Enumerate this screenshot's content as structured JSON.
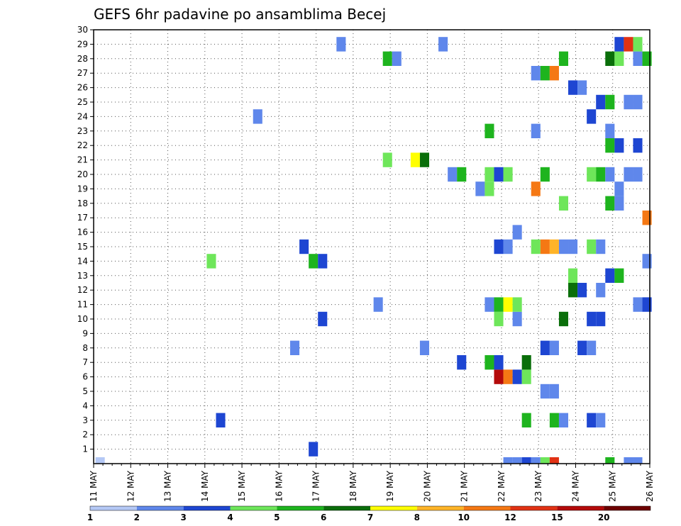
{
  "chart_data": {
    "type": "heatmap",
    "title": "GEFS 6hr padavine po ansamblima Becej",
    "x_tick_labels": [
      "11 MAY",
      "12 MAY",
      "13 MAY",
      "14 MAY",
      "15 MAY",
      "16 MAY",
      "17 MAY",
      "18 MAY",
      "19 MAY",
      "20 MAY",
      "21 MAY",
      "22 MAY",
      "23 MAY",
      "24 MAY",
      "25 MAY",
      "26 MAY"
    ],
    "x_range_days": [
      11,
      26
    ],
    "y_tick_labels": [
      "1",
      "2",
      "3",
      "4",
      "5",
      "6",
      "7",
      "8",
      "9",
      "10",
      "11",
      "12",
      "13",
      "14",
      "15",
      "16",
      "17",
      "18",
      "19",
      "20",
      "21",
      "22",
      "23",
      "24",
      "25",
      "26",
      "27",
      "28",
      "29",
      "30"
    ],
    "y_range": [
      0,
      30
    ],
    "grid": true,
    "legend": {
      "placement": "bottom",
      "labels": [
        "1",
        "2",
        "3",
        "4",
        "5",
        "6",
        "7",
        "8",
        "10",
        "12",
        "15",
        "20"
      ],
      "colors": [
        "#b4c8f5",
        "#5f87eb",
        "#1e46d2",
        "#6ee65a",
        "#1eb41e",
        "#0a6e0a",
        "#ffff00",
        "#ffb428",
        "#f57814",
        "#e13214",
        "#b40a0a",
        "#6e0000"
      ]
    },
    "cells": [
      {
        "x": 11.05,
        "y": 0,
        "level": 0
      },
      {
        "x": 22.05,
        "y": 0,
        "level": 1
      },
      {
        "x": 22.3,
        "y": 0,
        "level": 1
      },
      {
        "x": 22.55,
        "y": 0,
        "level": 2
      },
      {
        "x": 22.8,
        "y": 0,
        "level": 1
      },
      {
        "x": 23.05,
        "y": 0,
        "level": 3
      },
      {
        "x": 23.3,
        "y": 0,
        "level": 9
      },
      {
        "x": 24.8,
        "y": 0,
        "level": 4
      },
      {
        "x": 25.3,
        "y": 0,
        "level": 1
      },
      {
        "x": 25.55,
        "y": 0,
        "level": 1
      },
      {
        "x": 16.8,
        "y": 1,
        "level": 2
      },
      {
        "x": 14.3,
        "y": 3,
        "level": 2
      },
      {
        "x": 22.55,
        "y": 3,
        "level": 4
      },
      {
        "x": 23.3,
        "y": 3,
        "level": 4
      },
      {
        "x": 23.55,
        "y": 3,
        "level": 1
      },
      {
        "x": 24.3,
        "y": 3,
        "level": 2
      },
      {
        "x": 24.55,
        "y": 3,
        "level": 1
      },
      {
        "x": 23.05,
        "y": 5,
        "level": 1
      },
      {
        "x": 23.3,
        "y": 5,
        "level": 1
      },
      {
        "x": 21.8,
        "y": 6,
        "level": 10
      },
      {
        "x": 22.05,
        "y": 6,
        "level": 8
      },
      {
        "x": 22.3,
        "y": 6,
        "level": 2
      },
      {
        "x": 22.55,
        "y": 6,
        "level": 3
      },
      {
        "x": 20.8,
        "y": 7,
        "level": 2
      },
      {
        "x": 21.55,
        "y": 7,
        "level": 4
      },
      {
        "x": 21.8,
        "y": 7,
        "level": 2
      },
      {
        "x": 22.55,
        "y": 7,
        "level": 5
      },
      {
        "x": 16.3,
        "y": 8,
        "level": 1
      },
      {
        "x": 19.8,
        "y": 8,
        "level": 1
      },
      {
        "x": 23.05,
        "y": 8,
        "level": 2
      },
      {
        "x": 23.3,
        "y": 8,
        "level": 1
      },
      {
        "x": 24.05,
        "y": 8,
        "level": 2
      },
      {
        "x": 24.3,
        "y": 8,
        "level": 1
      },
      {
        "x": 17.05,
        "y": 10,
        "level": 2
      },
      {
        "x": 21.8,
        "y": 10,
        "level": 3
      },
      {
        "x": 22.3,
        "y": 10,
        "level": 1
      },
      {
        "x": 23.55,
        "y": 10,
        "level": 5
      },
      {
        "x": 24.3,
        "y": 10,
        "level": 2
      },
      {
        "x": 24.55,
        "y": 10,
        "level": 2
      },
      {
        "x": 18.55,
        "y": 11,
        "level": 1
      },
      {
        "x": 21.55,
        "y": 11,
        "level": 1
      },
      {
        "x": 21.8,
        "y": 11,
        "level": 4
      },
      {
        "x": 22.05,
        "y": 11,
        "level": 6
      },
      {
        "x": 22.3,
        "y": 11,
        "level": 3
      },
      {
        "x": 25.55,
        "y": 11,
        "level": 1
      },
      {
        "x": 25.8,
        "y": 11,
        "level": 2
      },
      {
        "x": 23.8,
        "y": 12,
        "level": 5
      },
      {
        "x": 24.05,
        "y": 12,
        "level": 2
      },
      {
        "x": 24.55,
        "y": 12,
        "level": 1
      },
      {
        "x": 23.8,
        "y": 13,
        "level": 3
      },
      {
        "x": 24.8,
        "y": 13,
        "level": 2
      },
      {
        "x": 25.05,
        "y": 13,
        "level": 4
      },
      {
        "x": 14.05,
        "y": 14,
        "level": 3
      },
      {
        "x": 16.8,
        "y": 14,
        "level": 4
      },
      {
        "x": 17.05,
        "y": 14,
        "level": 2
      },
      {
        "x": 25.8,
        "y": 14,
        "level": 1
      },
      {
        "x": 16.55,
        "y": 15,
        "level": 2
      },
      {
        "x": 21.8,
        "y": 15,
        "level": 2
      },
      {
        "x": 22.05,
        "y": 15,
        "level": 1
      },
      {
        "x": 22.8,
        "y": 15,
        "level": 3
      },
      {
        "x": 23.05,
        "y": 15,
        "level": 8
      },
      {
        "x": 23.3,
        "y": 15,
        "level": 7
      },
      {
        "x": 23.55,
        "y": 15,
        "level": 1
      },
      {
        "x": 23.8,
        "y": 15,
        "level": 1
      },
      {
        "x": 24.3,
        "y": 15,
        "level": 3
      },
      {
        "x": 24.55,
        "y": 15,
        "level": 1
      },
      {
        "x": 22.3,
        "y": 16,
        "level": 1
      },
      {
        "x": 25.8,
        "y": 17,
        "level": 8
      },
      {
        "x": 23.55,
        "y": 18,
        "level": 3
      },
      {
        "x": 24.8,
        "y": 18,
        "level": 4
      },
      {
        "x": 25.05,
        "y": 18,
        "level": 1
      },
      {
        "x": 21.3,
        "y": 19,
        "level": 1
      },
      {
        "x": 21.55,
        "y": 19,
        "level": 3
      },
      {
        "x": 22.8,
        "y": 19,
        "level": 8
      },
      {
        "x": 25.05,
        "y": 19,
        "level": 1
      },
      {
        "x": 20.55,
        "y": 20,
        "level": 1
      },
      {
        "x": 20.8,
        "y": 20,
        "level": 4
      },
      {
        "x": 21.55,
        "y": 20,
        "level": 3
      },
      {
        "x": 21.8,
        "y": 20,
        "level": 2
      },
      {
        "x": 22.05,
        "y": 20,
        "level": 3
      },
      {
        "x": 23.05,
        "y": 20,
        "level": 4
      },
      {
        "x": 24.3,
        "y": 20,
        "level": 3
      },
      {
        "x": 24.55,
        "y": 20,
        "level": 4
      },
      {
        "x": 24.8,
        "y": 20,
        "level": 1
      },
      {
        "x": 25.3,
        "y": 20,
        "level": 1
      },
      {
        "x": 25.55,
        "y": 20,
        "level": 1
      },
      {
        "x": 18.8,
        "y": 21,
        "level": 3
      },
      {
        "x": 19.55,
        "y": 21,
        "level": 6
      },
      {
        "x": 19.8,
        "y": 21,
        "level": 5
      },
      {
        "x": 24.8,
        "y": 22,
        "level": 4
      },
      {
        "x": 25.05,
        "y": 22,
        "level": 2
      },
      {
        "x": 25.55,
        "y": 22,
        "level": 2
      },
      {
        "x": 21.55,
        "y": 23,
        "level": 4
      },
      {
        "x": 22.8,
        "y": 23,
        "level": 1
      },
      {
        "x": 24.8,
        "y": 23,
        "level": 1
      },
      {
        "x": 15.3,
        "y": 24,
        "level": 1
      },
      {
        "x": 24.3,
        "y": 24,
        "level": 2
      },
      {
        "x": 24.55,
        "y": 25,
        "level": 2
      },
      {
        "x": 24.8,
        "y": 25,
        "level": 4
      },
      {
        "x": 25.3,
        "y": 25,
        "level": 1
      },
      {
        "x": 25.55,
        "y": 25,
        "level": 1
      },
      {
        "x": 23.8,
        "y": 26,
        "level": 2
      },
      {
        "x": 24.05,
        "y": 26,
        "level": 1
      },
      {
        "x": 22.8,
        "y": 27,
        "level": 1
      },
      {
        "x": 23.05,
        "y": 27,
        "level": 4
      },
      {
        "x": 23.3,
        "y": 27,
        "level": 8
      },
      {
        "x": 18.8,
        "y": 28,
        "level": 4
      },
      {
        "x": 19.05,
        "y": 28,
        "level": 1
      },
      {
        "x": 23.55,
        "y": 28,
        "level": 4
      },
      {
        "x": 24.8,
        "y": 28,
        "level": 5
      },
      {
        "x": 25.05,
        "y": 28,
        "level": 3
      },
      {
        "x": 25.55,
        "y": 28,
        "level": 1
      },
      {
        "x": 25.8,
        "y": 28,
        "level": 4
      },
      {
        "x": 17.55,
        "y": 29,
        "level": 1
      },
      {
        "x": 20.3,
        "y": 29,
        "level": 1
      },
      {
        "x": 25.05,
        "y": 29,
        "level": 2
      },
      {
        "x": 25.3,
        "y": 29,
        "level": 9
      },
      {
        "x": 25.55,
        "y": 29,
        "level": 3
      }
    ]
  }
}
